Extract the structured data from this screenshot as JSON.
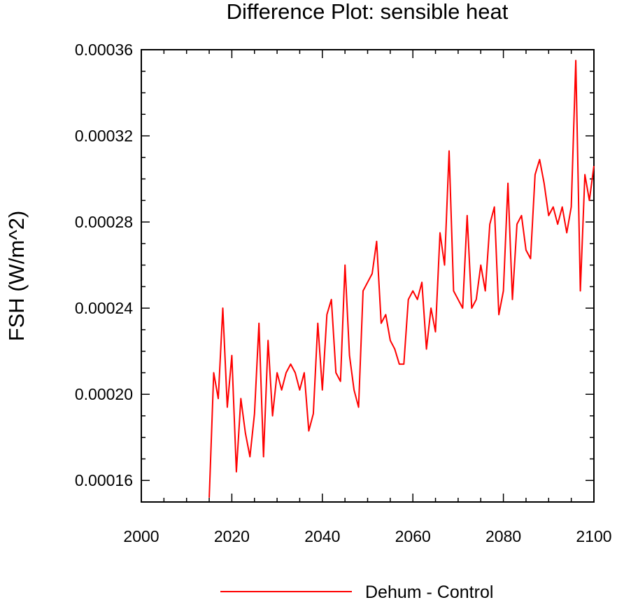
{
  "chart_data": {
    "type": "line",
    "title": "Difference Plot: sensible heat",
    "xlabel": "",
    "ylabel": "FSH  (W/m^2)",
    "xlim": [
      2000,
      2100
    ],
    "ylim": [
      0.00015,
      0.00036
    ],
    "x_ticks": [
      2000,
      2020,
      2040,
      2060,
      2080,
      2100
    ],
    "x_tick_labels": [
      "2000",
      "2020",
      "2040",
      "2060",
      "2080",
      "2100"
    ],
    "y_ticks": [
      0.00016,
      0.0002,
      0.00024,
      0.00028,
      0.00032,
      0.00036
    ],
    "y_tick_labels": [
      "0.00016",
      "0.00020",
      "0.00024",
      "0.00028",
      "0.00032",
      "0.00036"
    ],
    "grid": false,
    "legend_position": "bottom-center",
    "series": [
      {
        "name": "Dehum - Control",
        "color": "#ff0000",
        "x": [
          2015,
          2016,
          2017,
          2018,
          2019,
          2020,
          2021,
          2022,
          2023,
          2024,
          2025,
          2026,
          2027,
          2028,
          2029,
          2030,
          2031,
          2032,
          2033,
          2034,
          2035,
          2036,
          2037,
          2038,
          2039,
          2040,
          2041,
          2042,
          2043,
          2044,
          2045,
          2046,
          2047,
          2048,
          2049,
          2050,
          2051,
          2052,
          2053,
          2054,
          2055,
          2056,
          2057,
          2058,
          2059,
          2060,
          2061,
          2062,
          2063,
          2064,
          2065,
          2066,
          2067,
          2068,
          2069,
          2070,
          2071,
          2072,
          2073,
          2074,
          2075,
          2076,
          2077,
          2078,
          2079,
          2080,
          2081,
          2082,
          2083,
          2084,
          2085,
          2086,
          2087,
          2088,
          2089,
          2090,
          2091,
          2092,
          2093,
          2094,
          2095,
          2096,
          2097,
          2098,
          2099,
          2100
        ],
        "values": [
          0.000152,
          0.00021,
          0.000198,
          0.00024,
          0.000194,
          0.000218,
          0.000164,
          0.000198,
          0.000182,
          0.000171,
          0.000191,
          0.000233,
          0.000171,
          0.000225,
          0.00019,
          0.00021,
          0.000202,
          0.00021,
          0.000214,
          0.00021,
          0.000202,
          0.00021,
          0.000183,
          0.000191,
          0.000233,
          0.000202,
          0.000237,
          0.000244,
          0.00021,
          0.000206,
          0.00026,
          0.000218,
          0.000202,
          0.000194,
          0.000248,
          0.000252,
          0.000256,
          0.000271,
          0.000233,
          0.000237,
          0.000225,
          0.000221,
          0.000214,
          0.000214,
          0.000244,
          0.000248,
          0.000244,
          0.000252,
          0.000221,
          0.00024,
          0.000229,
          0.000275,
          0.00026,
          0.000313,
          0.000248,
          0.000244,
          0.00024,
          0.000283,
          0.00024,
          0.000244,
          0.00026,
          0.000248,
          0.000279,
          0.000287,
          0.000237,
          0.000248,
          0.000298,
          0.000244,
          0.000279,
          0.000283,
          0.000267,
          0.000263,
          0.000302,
          0.000309,
          0.000298,
          0.000283,
          0.000287,
          0.000279,
          0.000287,
          0.000275,
          0.000287,
          0.000355,
          0.000248,
          0.000302,
          0.00029,
          0.000306
        ]
      }
    ]
  }
}
